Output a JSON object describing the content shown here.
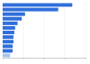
{
  "chart_data": {
    "type": "bar",
    "orientation": "horizontal",
    "categories": [
      null,
      null,
      null,
      null,
      null,
      null,
      null,
      null,
      null,
      null,
      null,
      null
    ],
    "values": [
      84,
      67,
      27,
      23,
      18,
      15,
      14,
      13,
      13,
      12,
      12,
      9
    ],
    "colors": [
      "#2f6fdb",
      "#2f6fdb",
      "#2f6fdb",
      "#2f6fdb",
      "#2f6fdb",
      "#2f6fdb",
      "#2f6fdb",
      "#2f6fdb",
      "#2f6fdb",
      "#2f6fdb",
      "#2f6fdb",
      "#a9c3ef"
    ],
    "xlim": [
      0,
      100
    ],
    "xticks": [
      0,
      25,
      50,
      75,
      100
    ],
    "grid": true,
    "tick_labels": false
  }
}
